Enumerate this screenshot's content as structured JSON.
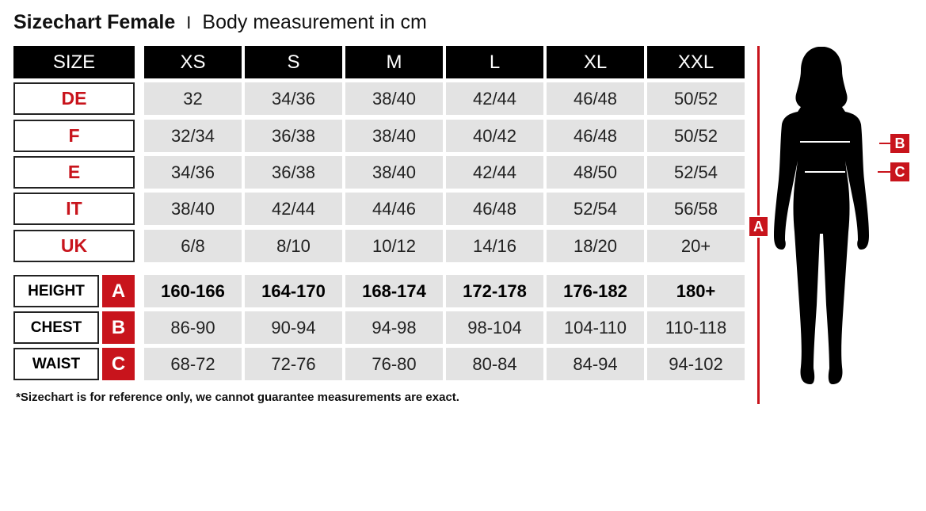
{
  "title": {
    "main": "Sizechart Female",
    "separator": "I",
    "sub": "Body measurement in cm"
  },
  "table": {
    "header_label": "SIZE",
    "sizes": [
      "XS",
      "S",
      "M",
      "L",
      "XL",
      "XXL"
    ],
    "conversion_rows": [
      {
        "label": "DE",
        "values": [
          "32",
          "34/36",
          "38/40",
          "42/44",
          "46/48",
          "50/52"
        ]
      },
      {
        "label": "F",
        "values": [
          "32/34",
          "36/38",
          "38/40",
          "40/42",
          "46/48",
          "50/52"
        ]
      },
      {
        "label": "E",
        "values": [
          "34/36",
          "36/38",
          "38/40",
          "42/44",
          "48/50",
          "52/54"
        ]
      },
      {
        "label": "IT",
        "values": [
          "38/40",
          "42/44",
          "44/46",
          "46/48",
          "52/54",
          "56/58"
        ]
      },
      {
        "label": "UK",
        "values": [
          "6/8",
          "8/10",
          "10/12",
          "14/16",
          "18/20",
          "20+"
        ]
      }
    ],
    "measurement_rows": [
      {
        "label": "HEIGHT",
        "letter": "A",
        "values": [
          "160-166",
          "164-170",
          "168-174",
          "172-178",
          "176-182",
          "180+"
        ]
      },
      {
        "label": "CHEST",
        "letter": "B",
        "values": [
          "86-90",
          "90-94",
          "94-98",
          "98-104",
          "104-110",
          "110-118"
        ]
      },
      {
        "label": "WAIST",
        "letter": "C",
        "values": [
          "68-72",
          "72-76",
          "76-80",
          "80-84",
          "84-94",
          "94-102"
        ]
      }
    ]
  },
  "footnote": "*Sizechart is for reference only, we cannot guarantee measurements are exact.",
  "figure": {
    "height_marker": "A",
    "chest_marker": "B",
    "waist_marker": "C"
  },
  "colors": {
    "accent": "#c8141c",
    "header": "#000000",
    "cell": "#e3e3e3"
  }
}
